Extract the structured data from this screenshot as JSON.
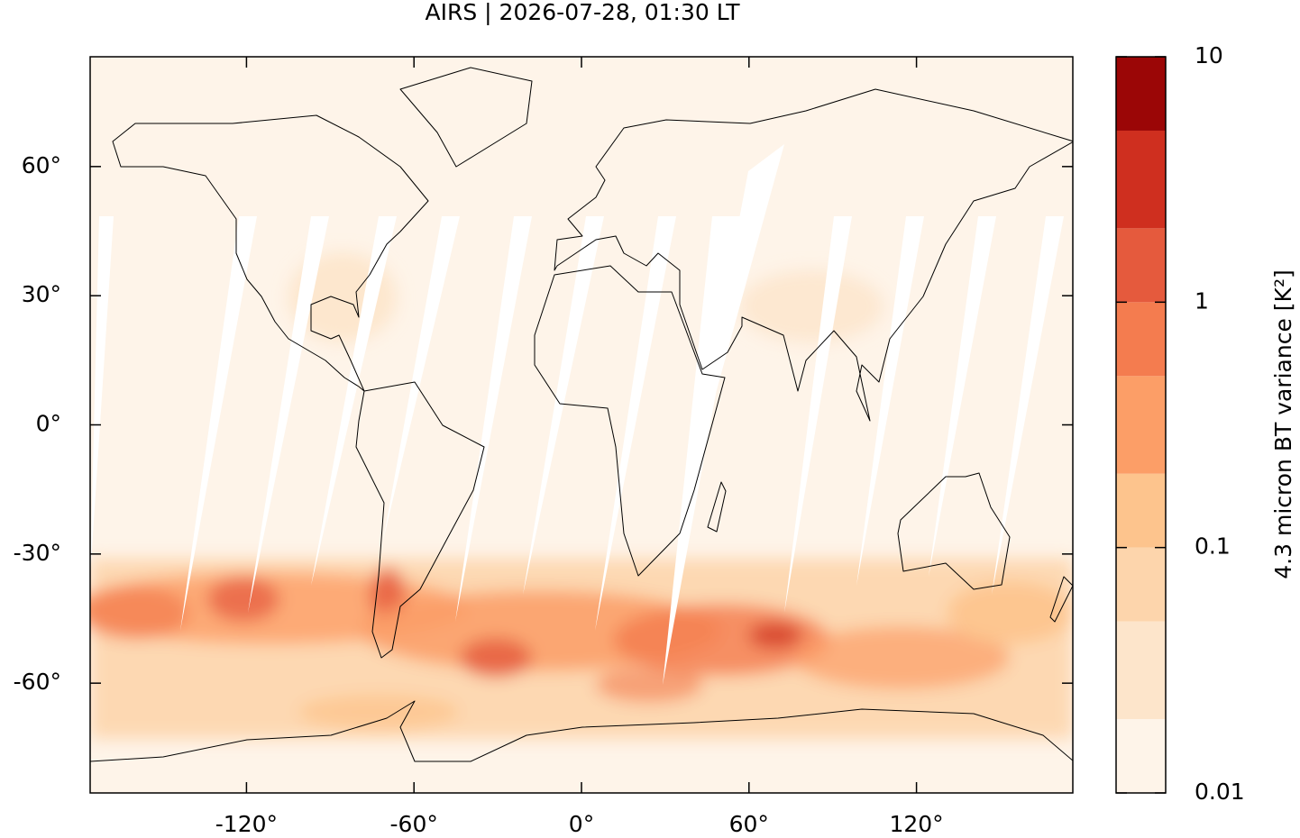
{
  "chart_data": {
    "type": "map",
    "title": "AIRS | 2026-07-28, 01:30 LT",
    "xlim": [
      -176,
      176
    ],
    "ylim": [
      -85.5,
      85.5
    ],
    "xticks": [
      {
        "value": -120,
        "label": "-120°"
      },
      {
        "value": -60,
        "label": "-60°"
      },
      {
        "value": 0,
        "label": "0°"
      },
      {
        "value": 60,
        "label": "60°"
      },
      {
        "value": 120,
        "label": "120°"
      }
    ],
    "yticks": [
      {
        "value": 60,
        "label": "60°"
      },
      {
        "value": 30,
        "label": "30°"
      },
      {
        "value": 0,
        "label": "0°"
      },
      {
        "value": -30,
        "label": "-30°"
      },
      {
        "value": -60,
        "label": "-60°"
      }
    ],
    "colorbar": {
      "label": "4.3 micron BT variance [K²]",
      "scale": "log",
      "lim": [
        0.01,
        10
      ],
      "ticks": [
        0.01,
        0.1,
        1,
        10
      ],
      "levels": [
        0.01,
        0.02,
        0.05,
        0.1,
        0.2,
        0.5,
        1,
        2,
        5,
        10
      ],
      "colors": [
        "#fef4e9",
        "#fde5cb",
        "#fdd5ac",
        "#fdc48d",
        "#fc9e67",
        "#f47c4f",
        "#e55a3d",
        "#cf2f1f",
        "#9b0606"
      ]
    }
  }
}
